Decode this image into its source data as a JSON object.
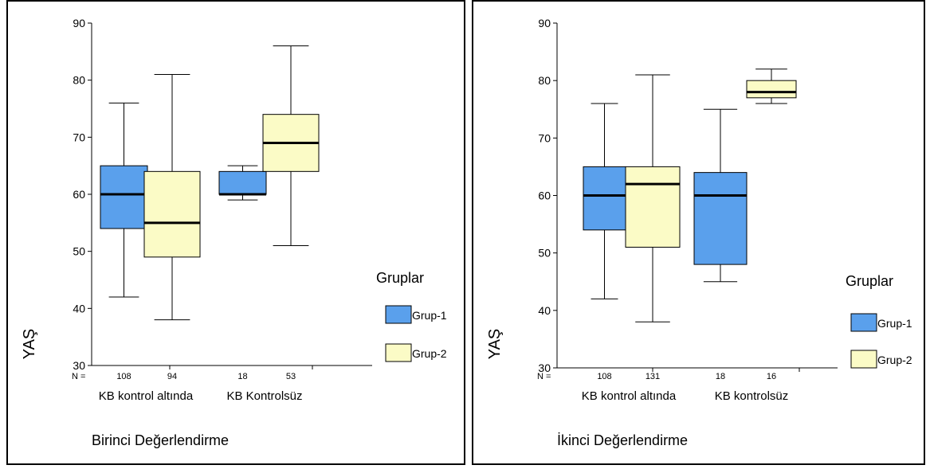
{
  "chart_data": [
    {
      "type": "boxplot",
      "title": "Birinci Değerlendirme",
      "ylabel": "YAŞ",
      "ylim": [
        30,
        90
      ],
      "yticks": [
        30,
        40,
        50,
        60,
        70,
        80,
        90
      ],
      "n_label": "N =",
      "categories": [
        "KB kontrol altında",
        "KB Kontrolsüz"
      ],
      "legend": {
        "title": "Gruplar",
        "entries": [
          "Grup-1",
          "Grup-2"
        ],
        "position": "right"
      },
      "colors": {
        "Grup-1": "#5aa0ec",
        "Grup-2": "#fbfbc6"
      },
      "boxes": [
        {
          "category": "KB kontrol altında",
          "series": "Grup-1",
          "n": "108",
          "min": 42,
          "q1": 54,
          "median": 60,
          "q3": 65,
          "max": 76
        },
        {
          "category": "KB kontrol altında",
          "series": "Grup-2",
          "n": "94",
          "min": 38,
          "q1": 49,
          "median": 55,
          "q3": 64,
          "max": 81
        },
        {
          "category": "KB Kontrolsüz",
          "series": "Grup-1",
          "n": "18",
          "min": 59,
          "q1": 60,
          "median": 60,
          "q3": 64,
          "max": 65
        },
        {
          "category": "KB Kontrolsüz",
          "series": "Grup-2",
          "n": "53",
          "min": 51,
          "q1": 64,
          "median": 69,
          "q3": 74,
          "max": 86
        }
      ]
    },
    {
      "type": "boxplot",
      "title": "İkinci Değerlendirme",
      "ylabel": "YAŞ",
      "ylim": [
        30,
        90
      ],
      "yticks": [
        30,
        40,
        50,
        60,
        70,
        80,
        90
      ],
      "n_label": "N =",
      "categories": [
        "KB kontrol altında",
        "KB kontrolsüz"
      ],
      "legend": {
        "title": "Gruplar",
        "entries": [
          "Grup-1",
          "Grup-2"
        ],
        "position": "right"
      },
      "colors": {
        "Grup-1": "#5aa0ec",
        "Grup-2": "#fbfbc6"
      },
      "boxes": [
        {
          "category": "KB kontrol altında",
          "series": "Grup-1",
          "n": "108",
          "min": 42,
          "q1": 54,
          "median": 60,
          "q3": 65,
          "max": 76
        },
        {
          "category": "KB kontrol altında",
          "series": "Grup-2",
          "n": "131",
          "min": 38,
          "q1": 51,
          "median": 62,
          "q3": 65,
          "max": 81
        },
        {
          "category": "KB kontrolsüz",
          "series": "Grup-1",
          "n": "18",
          "min": 45,
          "q1": 48,
          "median": 60,
          "q3": 64,
          "max": 75
        },
        {
          "category": "KB kontrolsüz",
          "series": "Grup-2",
          "n": "16",
          "min": 76,
          "q1": 77,
          "median": 78,
          "q3": 80,
          "max": 82
        }
      ]
    }
  ]
}
